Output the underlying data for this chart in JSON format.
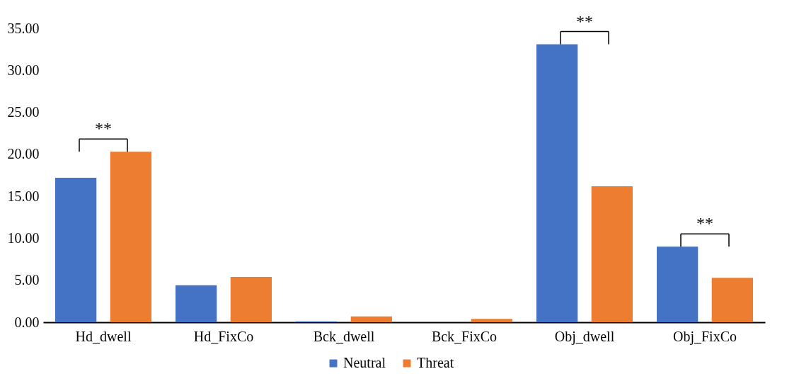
{
  "chart_data": {
    "type": "bar",
    "categories": [
      "Hd_dwell",
      "Hd_FixCo",
      "Bck_dwell",
      "Bck_FixCo",
      "Obj_dwell",
      "Obj_FixCo"
    ],
    "series": [
      {
        "name": "Neutral",
        "color": "#4472c4",
        "values": [
          17.2,
          4.4,
          0.1,
          0,
          33.1,
          9.0
        ]
      },
      {
        "name": "Threat",
        "color": "#ed7d31",
        "values": [
          20.3,
          5.4,
          0.7,
          0.4,
          16.2,
          5.3
        ]
      }
    ],
    "ylim": [
      0,
      35
    ],
    "yticks": [
      {
        "value": 0,
        "label": "0.00"
      },
      {
        "value": 5,
        "label": "5.00"
      },
      {
        "value": 10,
        "label": "10.00"
      },
      {
        "value": 15,
        "label": "15.00"
      },
      {
        "value": 20,
        "label": "20.00"
      },
      {
        "value": 25,
        "label": "25.00"
      },
      {
        "value": 30,
        "label": "30.00"
      },
      {
        "value": 35,
        "label": "35.00"
      }
    ],
    "grid": false,
    "legend": "bottom",
    "annotations": [
      "**",
      "**",
      "**"
    ]
  }
}
